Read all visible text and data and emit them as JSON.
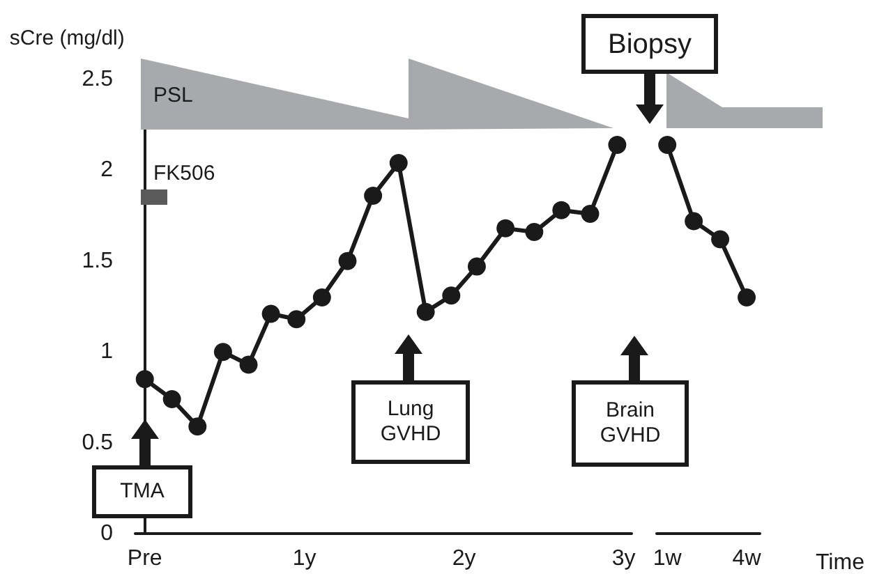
{
  "chart_data": [
    {
      "type": "line",
      "ylabel": "sCre (mg/dl)",
      "x": [
        0,
        0.17,
        0.33,
        0.49,
        0.65,
        0.79,
        0.95,
        1.11,
        1.27,
        1.43,
        1.59,
        1.76,
        1.92,
        2.08,
        2.26,
        2.44,
        2.61,
        2.79,
        2.96
      ],
      "series": [
        {
          "color": "#1a1a1a",
          "values": [
            0.85,
            0.74,
            0.59,
            1.0,
            0.93,
            1.21,
            1.18,
            1.3,
            1.5,
            1.86,
            2.04,
            1.22,
            1.31,
            1.47,
            1.68,
            1.66,
            1.78,
            1.76,
            2.14
          ]
        }
      ],
      "xlim": [
        -0.06,
        3.05
      ],
      "xticks": [
        {
          "value": 0,
          "label": "Pre"
        },
        {
          "value": 1,
          "label": "1y"
        },
        {
          "value": 2,
          "label": "2y"
        },
        {
          "value": 3,
          "label": "3y"
        }
      ],
      "ylim": [
        0,
        2.5
      ],
      "yticks": [
        0,
        0.5,
        1,
        1.5,
        2,
        2.5
      ],
      "marker": "circle",
      "grid": false,
      "annotations": [
        "PSL",
        "FK506",
        "TMA",
        "Lung GVHD",
        "Brain GVHD",
        "Biopsy"
      ]
    },
    {
      "type": "line",
      "xlabel": "Time",
      "x": [
        1,
        2,
        3,
        4
      ],
      "series": [
        {
          "color": "#1a1a1a",
          "values": [
            2.14,
            1.72,
            1.62,
            1.3
          ]
        }
      ],
      "xlim": [
        0.6,
        4.5
      ],
      "xticks": [
        {
          "value": 1,
          "label": "1w"
        },
        {
          "value": 4,
          "label": "4w"
        }
      ],
      "ylim": [
        0,
        2.5
      ],
      "tick_labels": "x",
      "marker": "circle",
      "grid": false
    }
  ]
}
